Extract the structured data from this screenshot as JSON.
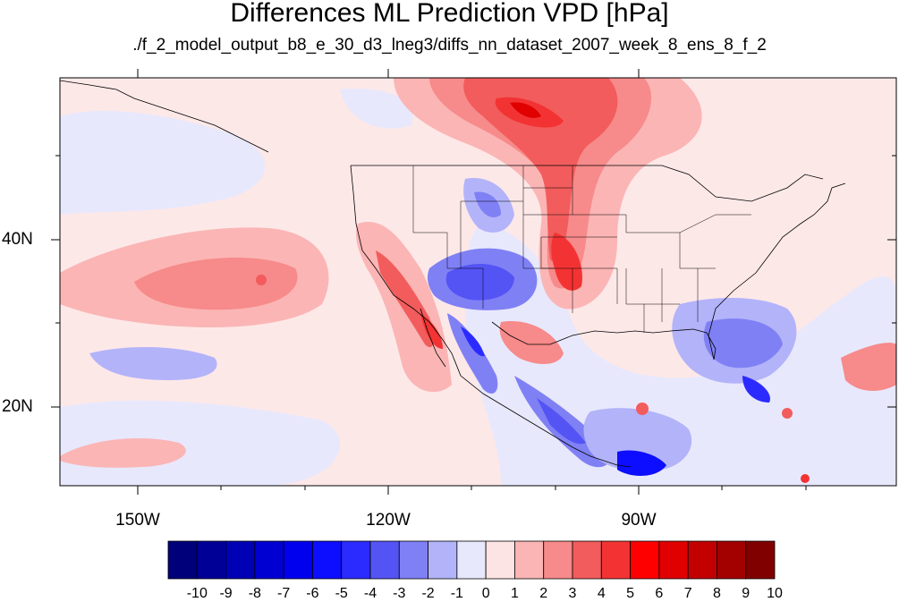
{
  "title": "Differences ML Prediction VPD [hPa]",
  "subtitle": "./f_2_model_output_b8_e_30_d3_lneg3/diffs_nn_dataset_2007_week_8_ens_8_f_2",
  "lat_axis": [
    "40N",
    "20N"
  ],
  "lon_axis": [
    "150W",
    "120W",
    "90W"
  ],
  "colorbar": {
    "labels": [
      "-10",
      "-9",
      "-8",
      "-7",
      "-6",
      "-5",
      "-4",
      "-3",
      "-2",
      "-1",
      "0",
      "1",
      "2",
      "3",
      "4",
      "5",
      "6",
      "7",
      "8",
      "9",
      "10"
    ],
    "colors": [
      "#00007a",
      "#000096",
      "#0000b4",
      "#0000d2",
      "#0000ef",
      "#0d0dff",
      "#2b2bff",
      "#5454f5",
      "#8080f5",
      "#b3b3fa",
      "#e8e8fc",
      "#fde4e4",
      "#fbb5b5",
      "#f78a8a",
      "#f25c5c",
      "#f33333",
      "#ff0000",
      "#e00000",
      "#c20000",
      "#a30000",
      "#800000"
    ]
  }
}
